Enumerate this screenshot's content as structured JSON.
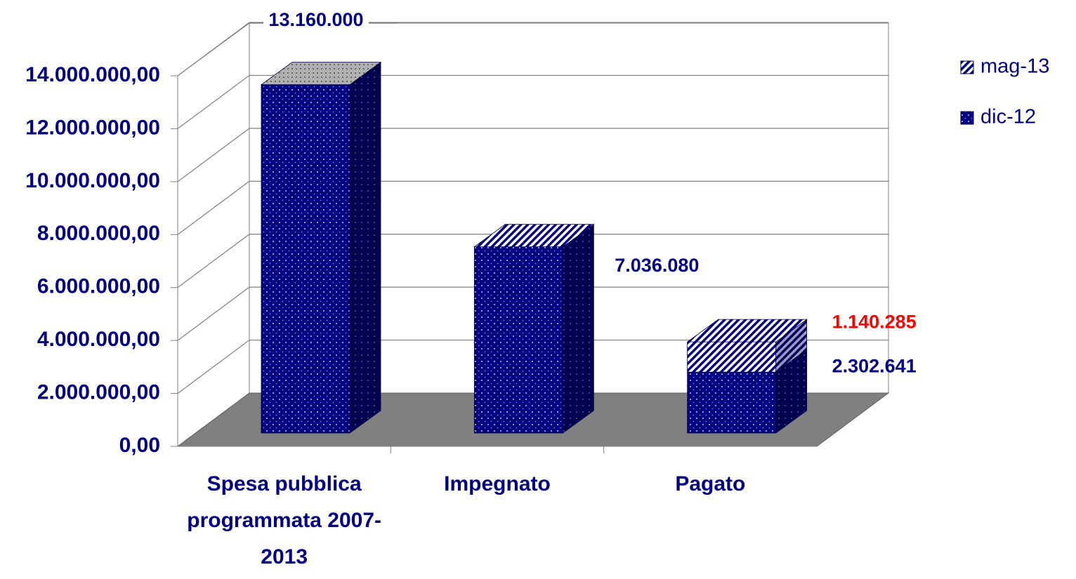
{
  "chart_data": {
    "type": "bar3d_stacked",
    "categories": [
      "Spesa pubblica programmata 2007-2013",
      "Impegnato",
      "Pagato"
    ],
    "series": [
      {
        "name": "dic-12",
        "color": "#000080",
        "label_color": "#000080",
        "values": [
          13160000,
          7036080,
          2302641
        ],
        "value_labels": [
          "13.160.000",
          "7.036.080",
          "2.302.641"
        ]
      },
      {
        "name": "mag-13",
        "color": "#000080",
        "label_color": "#ff0000",
        "values": [
          null,
          0,
          1140285
        ],
        "value_labels": [
          null,
          null,
          "1.140.285"
        ]
      }
    ],
    "ylim": [
      0,
      14000000
    ],
    "yticks": [
      {
        "value": 0,
        "label": "0,00"
      },
      {
        "value": 2000000,
        "label": "2.000.000,00"
      },
      {
        "value": 4000000,
        "label": "4.000.000,00"
      },
      {
        "value": 6000000,
        "label": "6.000.000,00"
      },
      {
        "value": 8000000,
        "label": "8.000.000,00"
      },
      {
        "value": 10000000,
        "label": "10.000.000,00"
      },
      {
        "value": 12000000,
        "label": "12.000.000,00"
      },
      {
        "value": 14000000,
        "label": "14.000.000,00"
      }
    ],
    "grid": true,
    "legend": "right"
  }
}
